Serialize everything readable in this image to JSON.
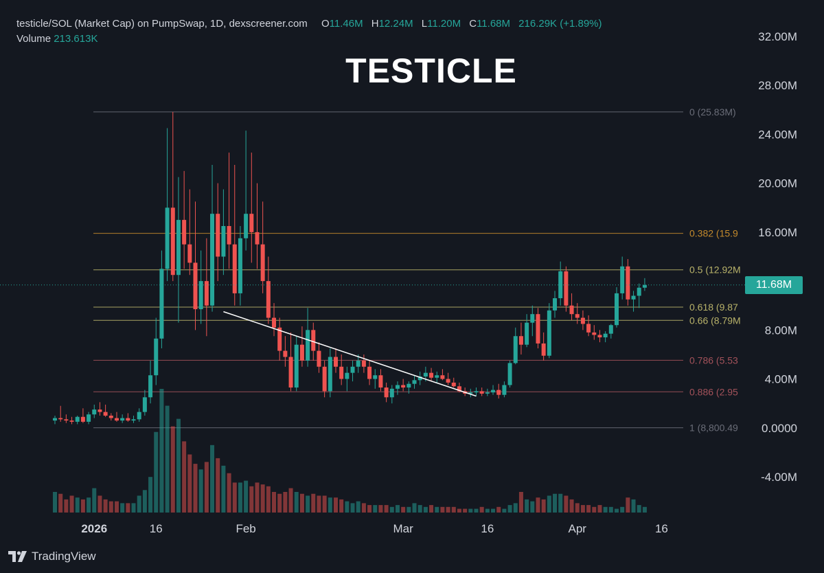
{
  "header": {
    "symbol": "testicle/SOL (Market Cap) on PumpSwap, 1D, dexscreener.com",
    "open_label": "O",
    "open": "11.46M",
    "high_label": "H",
    "high": "12.24M",
    "low_label": "L",
    "low": "11.20M",
    "close_label": "C",
    "close": "11.68M",
    "change": "216.29K (+1.89%)",
    "volume_label": "Volume",
    "volume": "213.613K"
  },
  "title": "TESTICLE",
  "last_price_tag": "11.68M",
  "brand": "TradingView",
  "colors": {
    "background": "#141820",
    "up": "#26a69a",
    "down": "#ef5350",
    "axis_text": "#d1d4dc",
    "fib_gold": "#c48a2c",
    "fib_yellow": "#b9b36a",
    "fib_red": "#a3525a",
    "fib_gray": "#6a6d78"
  },
  "chart_data": {
    "type": "candlestick",
    "y_ticks": [
      "32.00M",
      "28.00M",
      "24.00M",
      "20.00M",
      "16.00M",
      "8.00M",
      "4.00M",
      "0.0000",
      "-4.00M"
    ],
    "y_tick_values": [
      32,
      28,
      24,
      20,
      16,
      8,
      4,
      0,
      -4
    ],
    "ylim": [
      -7.0,
      34.0
    ],
    "x_ticks": [
      {
        "label": "2026",
        "day": 5,
        "bold": true
      },
      {
        "label": "16",
        "day": 16
      },
      {
        "label": "Feb",
        "day": 32
      },
      {
        "label": "Mar",
        "day": 60
      },
      {
        "label": "16",
        "day": 75
      },
      {
        "label": "Apr",
        "day": 91
      },
      {
        "label": "16",
        "day": 106
      }
    ],
    "fib_levels": [
      {
        "ratio": 0,
        "value": 25.83,
        "label": "0 (25.83M)",
        "color": "#6a6d78"
      },
      {
        "ratio": 0.382,
        "value": 15.9,
        "label": "0.382 (15.9",
        "color": "#c48a2c"
      },
      {
        "ratio": 0.5,
        "value": 12.92,
        "label": "0.5 (12.92M",
        "color": "#b9b36a"
      },
      {
        "ratio": 0.618,
        "value": 9.87,
        "label": "0.618 (9.87",
        "color": "#b9b36a"
      },
      {
        "ratio": 0.66,
        "value": 8.79,
        "label": "0.66 (8.79M",
        "color": "#b9b36a"
      },
      {
        "ratio": 0.786,
        "value": 5.53,
        "label": "0.786 (5.53",
        "color": "#a3525a"
      },
      {
        "ratio": 0.886,
        "value": 2.95,
        "label": "0.886 (2.95",
        "color": "#a3525a"
      },
      {
        "ratio": 1,
        "value": 0.0088,
        "label": "1 (8,800.49",
        "color": "#6a6d78"
      }
    ],
    "trendline": [
      {
        "day": 28,
        "value": 9.5
      },
      {
        "day": 73,
        "value": 2.6
      }
    ],
    "last_close": 11.68,
    "x_day_range": [
      -2,
      107
    ],
    "candles": [
      [
        0.6,
        1.0,
        0.3,
        0.8
      ],
      [
        0.8,
        1.8,
        0.5,
        0.7
      ],
      [
        0.7,
        1.1,
        0.4,
        0.6
      ],
      [
        0.6,
        0.9,
        0.3,
        0.5
      ],
      [
        0.5,
        1.0,
        0.3,
        0.9
      ],
      [
        0.9,
        1.6,
        0.4,
        0.5
      ],
      [
        0.5,
        1.3,
        0.3,
        1.1
      ],
      [
        1.1,
        1.9,
        0.8,
        1.5
      ],
      [
        1.5,
        2.1,
        1.0,
        1.3
      ],
      [
        1.3,
        1.9,
        0.9,
        1.0
      ],
      [
        1.0,
        1.2,
        0.6,
        0.8
      ],
      [
        0.8,
        1.3,
        0.5,
        0.6
      ],
      [
        0.6,
        1.1,
        0.4,
        0.8
      ],
      [
        0.8,
        1.2,
        0.5,
        0.6
      ],
      [
        0.6,
        1.0,
        0.4,
        0.7
      ],
      [
        0.7,
        1.6,
        0.5,
        1.3
      ],
      [
        1.3,
        3.1,
        1.0,
        2.5
      ],
      [
        2.5,
        5.5,
        2.0,
        4.3
      ],
      [
        4.3,
        9.0,
        3.5,
        7.3
      ],
      [
        7.3,
        14.5,
        6.5,
        13.0
      ],
      [
        13.0,
        24.5,
        12.0,
        18.0
      ],
      [
        18.0,
        25.83,
        12.0,
        12.5
      ],
      [
        12.5,
        20.5,
        8.6,
        17.0
      ],
      [
        17.0,
        21.0,
        13.0,
        15.0
      ],
      [
        15.0,
        19.5,
        12.5,
        13.5
      ],
      [
        13.5,
        18.5,
        8.0,
        9.7
      ],
      [
        9.7,
        14.5,
        8.5,
        12.0
      ],
      [
        12.0,
        15.5,
        7.5,
        10.0
      ],
      [
        10.0,
        21.5,
        9.5,
        17.5
      ],
      [
        17.5,
        20.0,
        12.0,
        14.0
      ],
      [
        14.0,
        19.5,
        12.5,
        16.5
      ],
      [
        16.5,
        22.5,
        13.0,
        15.0
      ],
      [
        15.0,
        21.5,
        10.0,
        11.0
      ],
      [
        11.0,
        16.5,
        10.0,
        15.5
      ],
      [
        15.5,
        24.3,
        14.5,
        17.5
      ],
      [
        17.5,
        22.5,
        13.5,
        16.0
      ],
      [
        16.0,
        20.0,
        13.0,
        15.0
      ],
      [
        15.0,
        18.5,
        11.0,
        12.0
      ],
      [
        12.0,
        14.0,
        8.5,
        9.0
      ],
      [
        9.0,
        10.2,
        7.5,
        8.2
      ],
      [
        8.2,
        9.0,
        5.5,
        6.3
      ],
      [
        6.3,
        7.5,
        5.0,
        5.8
      ],
      [
        5.8,
        7.8,
        3.0,
        3.3
      ],
      [
        3.3,
        7.5,
        3.0,
        6.8
      ],
      [
        6.8,
        8.3,
        5.0,
        5.5
      ],
      [
        5.5,
        9.8,
        5.0,
        8.0
      ],
      [
        8.0,
        8.6,
        5.5,
        6.3
      ],
      [
        6.3,
        7.0,
        4.5,
        5.0
      ],
      [
        5.0,
        5.5,
        2.5,
        3.0
      ],
      [
        3.0,
        6.5,
        2.5,
        5.8
      ],
      [
        5.8,
        6.5,
        4.5,
        5.0
      ],
      [
        5.0,
        6.0,
        3.5,
        4.0
      ],
      [
        4.0,
        5.0,
        3.0,
        4.5
      ],
      [
        4.5,
        5.5,
        3.8,
        5.0
      ],
      [
        5.0,
        6.0,
        4.5,
        5.5
      ],
      [
        5.5,
        6.0,
        4.5,
        5.0
      ],
      [
        5.0,
        5.5,
        3.5,
        4.0
      ],
      [
        4.0,
        4.8,
        3.2,
        4.3
      ],
      [
        4.3,
        4.8,
        3.0,
        3.3
      ],
      [
        3.3,
        3.7,
        2.1,
        2.5
      ],
      [
        2.5,
        3.5,
        2.0,
        3.2
      ],
      [
        3.2,
        3.8,
        2.7,
        3.5
      ],
      [
        3.5,
        4.0,
        3.0,
        3.3
      ],
      [
        3.3,
        3.8,
        2.8,
        3.6
      ],
      [
        3.6,
        4.3,
        3.2,
        3.9
      ],
      [
        3.9,
        4.6,
        3.5,
        4.2
      ],
      [
        4.2,
        5.0,
        3.8,
        4.5
      ],
      [
        4.5,
        4.9,
        3.8,
        4.1
      ],
      [
        4.1,
        4.6,
        3.7,
        4.3
      ],
      [
        4.3,
        4.8,
        3.9,
        4.0
      ],
      [
        4.0,
        4.5,
        3.5,
        3.7
      ],
      [
        3.7,
        4.1,
        3.3,
        3.4
      ],
      [
        3.4,
        3.7,
        2.9,
        3.0
      ],
      [
        3.0,
        3.3,
        2.6,
        2.8
      ],
      [
        2.8,
        3.2,
        2.5,
        2.9
      ],
      [
        2.9,
        3.3,
        2.6,
        3.0
      ],
      [
        3.0,
        3.3,
        2.6,
        2.8
      ],
      [
        2.8,
        3.2,
        2.6,
        2.9
      ],
      [
        2.9,
        3.5,
        2.7,
        3.1
      ],
      [
        3.1,
        3.6,
        2.4,
        2.7
      ],
      [
        2.7,
        3.8,
        2.5,
        3.5
      ],
      [
        3.5,
        5.5,
        3.3,
        5.3
      ],
      [
        5.3,
        8.2,
        5.2,
        7.5
      ],
      [
        7.5,
        8.6,
        6.0,
        6.8
      ],
      [
        6.8,
        9.3,
        6.6,
        8.6
      ],
      [
        8.6,
        10.0,
        7.5,
        9.3
      ],
      [
        9.3,
        9.8,
        6.5,
        6.9
      ],
      [
        6.9,
        7.8,
        5.5,
        5.9
      ],
      [
        5.9,
        10.2,
        5.7,
        9.6
      ],
      [
        9.6,
        11.2,
        9.0,
        10.6
      ],
      [
        10.6,
        13.6,
        10.0,
        12.8
      ],
      [
        12.8,
        13.2,
        9.5,
        10.0
      ],
      [
        10.0,
        11.0,
        8.8,
        9.3
      ],
      [
        9.3,
        10.2,
        8.5,
        9.0
      ],
      [
        9.0,
        9.6,
        8.0,
        8.5
      ],
      [
        8.5,
        9.2,
        7.5,
        7.8
      ],
      [
        7.8,
        8.4,
        7.2,
        7.6
      ],
      [
        7.6,
        8.0,
        7.0,
        7.4
      ],
      [
        7.4,
        7.9,
        7.0,
        7.7
      ],
      [
        7.7,
        8.5,
        7.3,
        8.4
      ],
      [
        8.4,
        11.5,
        8.2,
        11.0
      ],
      [
        11.0,
        14.0,
        10.5,
        13.2
      ],
      [
        13.2,
        13.8,
        10.0,
        10.5
      ],
      [
        10.5,
        11.2,
        9.5,
        10.8
      ],
      [
        10.8,
        11.8,
        9.8,
        11.46
      ],
      [
        11.46,
        12.24,
        11.2,
        11.68
      ]
    ],
    "candle_start_day": -2,
    "volumes": [
      1.1,
      1.0,
      0.7,
      0.9,
      0.8,
      0.7,
      0.8,
      1.3,
      0.9,
      0.7,
      0.6,
      0.6,
      0.5,
      0.5,
      0.5,
      0.9,
      1.2,
      1.9,
      4.3,
      6.6,
      5.7,
      4.6,
      5.0,
      3.8,
      3.1,
      2.6,
      2.3,
      2.7,
      3.6,
      2.9,
      2.5,
      2.1,
      1.6,
      1.6,
      1.7,
      1.4,
      1.6,
      1.5,
      1.4,
      1.1,
      1.0,
      1.1,
      1.3,
      1.1,
      1.0,
      0.9,
      1.0,
      0.9,
      0.9,
      0.8,
      0.8,
      0.7,
      0.6,
      0.5,
      0.6,
      0.5,
      0.4,
      0.4,
      0.4,
      0.4,
      0.3,
      0.4,
      0.3,
      0.3,
      0.5,
      0.4,
      0.3,
      0.4,
      0.3,
      0.3,
      0.3,
      0.3,
      0.2,
      0.2,
      0.2,
      0.2,
      0.3,
      0.2,
      0.2,
      0.3,
      0.2,
      0.4,
      0.5,
      1.1,
      0.7,
      0.6,
      0.8,
      0.7,
      0.9,
      1.0,
      1.0,
      0.9,
      0.7,
      0.5,
      0.4,
      0.4,
      0.3,
      0.4,
      0.3,
      0.3,
      0.2,
      0.3,
      0.8,
      0.7,
      0.4,
      0.3
    ],
    "volume_max_mil_scale": 6.6
  }
}
